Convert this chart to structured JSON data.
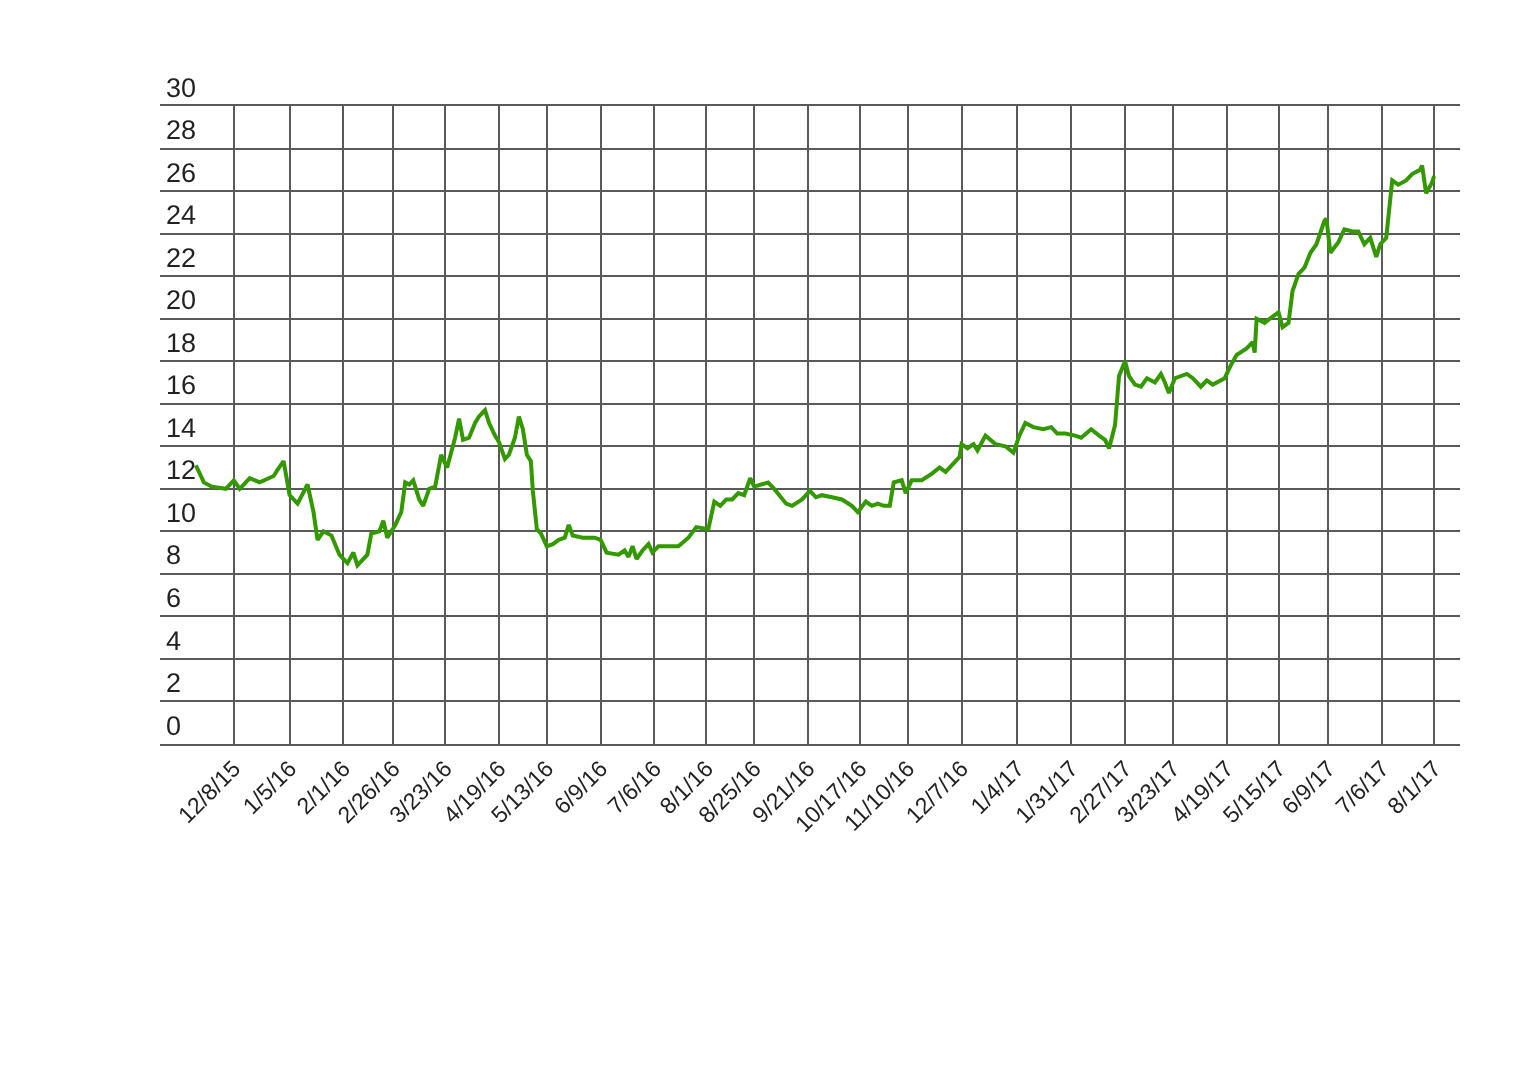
{
  "chart_data": {
    "type": "line",
    "color": "#339900",
    "x": [
      "2015-11-19",
      "2015-11-23",
      "2015-11-27",
      "2015-12-04",
      "2015-12-08",
      "2015-12-11",
      "2015-12-16",
      "2015-12-21",
      "2015-12-28",
      "2015-12-30",
      "2016-01-02",
      "2016-01-05",
      "2016-01-09",
      "2016-01-14",
      "2016-01-17",
      "2016-01-19",
      "2016-01-22",
      "2016-01-26",
      "2016-01-30",
      "2016-02-03",
      "2016-02-06",
      "2016-02-08",
      "2016-02-13",
      "2016-02-15",
      "2016-02-19",
      "2016-02-21",
      "2016-02-23",
      "2016-02-27",
      "2016-03-01",
      "2016-03-03",
      "2016-03-05",
      "2016-03-07",
      "2016-03-10",
      "2016-03-12",
      "2016-03-15",
      "2016-03-18",
      "2016-03-21",
      "2016-03-24",
      "2016-03-28",
      "2016-03-30",
      "2016-04-01",
      "2016-04-04",
      "2016-04-07",
      "2016-04-09",
      "2016-04-12",
      "2016-04-14",
      "2016-04-17",
      "2016-04-19",
      "2016-04-22",
      "2016-04-24",
      "2016-04-27",
      "2016-04-29",
      "2016-05-01",
      "2016-05-03",
      "2016-05-05",
      "2016-05-06",
      "2016-05-08",
      "2016-05-10",
      "2016-05-13",
      "2016-05-16",
      "2016-05-19",
      "2016-05-22",
      "2016-05-24",
      "2016-05-26",
      "2016-05-31",
      "2016-06-06",
      "2016-06-09",
      "2016-06-12",
      "2016-06-18",
      "2016-06-21",
      "2016-06-23",
      "2016-06-25",
      "2016-06-27",
      "2016-06-30",
      "2016-07-03",
      "2016-07-05",
      "2016-07-08",
      "2016-07-13",
      "2016-07-18",
      "2016-07-23",
      "2016-07-27",
      "2016-08-02",
      "2016-08-05",
      "2016-08-08",
      "2016-08-11",
      "2016-08-14",
      "2016-08-17",
      "2016-08-20",
      "2016-08-23",
      "2016-08-25",
      "2016-09-01",
      "2016-09-04",
      "2016-09-10",
      "2016-09-13",
      "2016-09-18",
      "2016-09-22",
      "2016-09-25",
      "2016-09-28",
      "2016-10-03",
      "2016-10-08",
      "2016-10-13",
      "2016-10-16",
      "2016-10-20",
      "2016-10-23",
      "2016-10-26",
      "2016-10-29",
      "2016-11-01",
      "2016-11-03",
      "2016-11-07",
      "2016-11-09",
      "2016-11-12",
      "2016-11-17",
      "2016-11-22",
      "2016-11-26",
      "2016-11-29",
      "2016-12-03",
      "2016-12-06",
      "2016-12-07",
      "2016-12-10",
      "2016-12-13",
      "2016-12-15",
      "2016-12-19",
      "2016-12-24",
      "2016-12-29",
      "2017-01-02",
      "2017-01-05",
      "2017-01-08",
      "2017-01-12",
      "2017-01-17",
      "2017-01-21",
      "2017-01-24",
      "2017-01-28",
      "2017-02-02",
      "2017-02-05",
      "2017-02-10",
      "2017-02-14",
      "2017-02-17",
      "2017-02-19",
      "2017-02-22",
      "2017-02-24",
      "2017-02-27",
      "2017-03-01",
      "2017-03-04",
      "2017-03-07",
      "2017-03-10",
      "2017-03-14",
      "2017-03-17",
      "2017-03-19",
      "2017-03-21",
      "2017-03-24",
      "2017-03-30",
      "2017-04-02",
      "2017-04-06",
      "2017-04-09",
      "2017-04-12",
      "2017-04-18",
      "2017-04-21",
      "2017-04-24",
      "2017-04-29",
      "2017-05-02",
      "2017-05-03",
      "2017-05-04",
      "2017-05-08",
      "2017-05-12",
      "2017-05-15",
      "2017-05-17",
      "2017-05-20",
      "2017-05-22",
      "2017-05-25",
      "2017-05-28",
      "2017-05-31",
      "2017-06-03",
      "2017-06-07",
      "2017-06-08",
      "2017-06-10",
      "2017-06-14",
      "2017-06-17",
      "2017-06-21",
      "2017-06-24",
      "2017-06-27",
      "2017-06-30",
      "2017-07-03",
      "2017-07-05",
      "2017-07-08",
      "2017-07-11",
      "2017-07-14",
      "2017-07-18",
      "2017-07-21",
      "2017-07-25",
      "2017-07-26",
      "2017-07-28",
      "2017-07-31",
      "2017-08-01"
    ],
    "values": [
      13.1,
      12.3,
      12.1,
      12.0,
      12.4,
      12.0,
      12.5,
      12.3,
      12.6,
      12.9,
      13.3,
      11.7,
      11.3,
      12.2,
      10.9,
      9.6,
      10.0,
      9.8,
      8.9,
      8.5,
      9.0,
      8.4,
      8.9,
      9.9,
      10.0,
      10.5,
      9.7,
      10.3,
      10.9,
      12.3,
      12.2,
      12.4,
      11.5,
      11.2,
      12.0,
      12.1,
      13.6,
      13.0,
      14.4,
      15.3,
      14.3,
      14.4,
      15.1,
      15.4,
      15.7,
      15.1,
      14.5,
      14.2,
      13.4,
      13.6,
      14.4,
      15.4,
      14.8,
      13.6,
      13.3,
      11.9,
      10.1,
      9.9,
      9.3,
      9.4,
      9.6,
      9.7,
      10.3,
      9.8,
      9.7,
      9.7,
      9.6,
      9.0,
      8.9,
      9.1,
      8.8,
      9.3,
      8.7,
      9.1,
      9.4,
      9.0,
      9.3,
      9.3,
      9.3,
      9.7,
      10.2,
      10.1,
      11.4,
      11.2,
      11.5,
      11.5,
      11.8,
      11.7,
      12.5,
      12.1,
      12.3,
      12.0,
      11.3,
      11.2,
      11.5,
      11.9,
      11.6,
      11.7,
      11.6,
      11.5,
      11.2,
      10.9,
      11.4,
      11.2,
      11.3,
      11.2,
      11.2,
      12.3,
      12.4,
      11.8,
      12.4,
      12.4,
      12.7,
      13.0,
      12.8,
      13.2,
      13.5,
      14.1,
      13.9,
      14.1,
      13.8,
      14.5,
      14.1,
      14.0,
      13.7,
      14.5,
      15.1,
      14.9,
      14.8,
      14.9,
      14.6,
      14.6,
      14.5,
      14.4,
      14.8,
      14.5,
      14.3,
      13.9,
      15.0,
      17.3,
      18.0,
      17.3,
      16.9,
      16.8,
      17.2,
      17.0,
      17.4,
      17.0,
      16.5,
      17.2,
      17.4,
      17.2,
      16.8,
      17.1,
      16.9,
      17.2,
      17.8,
      18.3,
      18.6,
      18.9,
      18.4,
      20.0,
      19.8,
      20.1,
      20.3,
      19.6,
      19.8,
      21.3,
      22.1,
      22.4,
      23.1,
      23.5,
      24.6,
      24.7,
      23.1,
      23.6,
      24.2,
      24.1,
      24.1,
      23.5,
      23.8,
      22.9,
      23.5,
      23.8,
      26.5,
      26.3,
      26.5,
      26.8,
      27.0,
      27.2,
      25.9,
      26.4,
      26.7
    ],
    "xlim": [
      "2015-11-01",
      "2017-08-14"
    ],
    "xticks": [
      {
        "value": "2015-12-08",
        "label": "12/8/15"
      },
      {
        "value": "2016-01-05",
        "label": "1/5/16"
      },
      {
        "value": "2016-02-01",
        "label": "2/1/16"
      },
      {
        "value": "2016-02-26",
        "label": "2/26/16"
      },
      {
        "value": "2016-03-23",
        "label": "3/23/16"
      },
      {
        "value": "2016-04-19",
        "label": "4/19/16"
      },
      {
        "value": "2016-05-13",
        "label": "5/13/16"
      },
      {
        "value": "2016-06-09",
        "label": "6/9/16"
      },
      {
        "value": "2016-07-06",
        "label": "7/6/16"
      },
      {
        "value": "2016-08-01",
        "label": "8/1/16"
      },
      {
        "value": "2016-08-25",
        "label": "8/25/16"
      },
      {
        "value": "2016-09-21",
        "label": "9/21/16"
      },
      {
        "value": "2016-10-17",
        "label": "10/17/16"
      },
      {
        "value": "2016-11-10",
        "label": "11/10/16"
      },
      {
        "value": "2016-12-07",
        "label": "12/7/16"
      },
      {
        "value": "2017-01-04",
        "label": "1/4/17"
      },
      {
        "value": "2017-01-31",
        "label": "1/31/17"
      },
      {
        "value": "2017-02-27",
        "label": "2/27/17"
      },
      {
        "value": "2017-03-23",
        "label": "3/23/17"
      },
      {
        "value": "2017-04-19",
        "label": "4/19/17"
      },
      {
        "value": "2017-05-15",
        "label": "5/15/17"
      },
      {
        "value": "2017-06-09",
        "label": "6/9/17"
      },
      {
        "value": "2017-07-06",
        "label": "7/6/17"
      },
      {
        "value": "2017-08-01",
        "label": "8/1/17"
      }
    ],
    "ylim": [
      0,
      30
    ],
    "yticks": [
      0,
      2,
      4,
      6,
      8,
      10,
      12,
      14,
      16,
      18,
      20,
      22,
      24,
      26,
      28,
      30
    ],
    "grid": true
  }
}
